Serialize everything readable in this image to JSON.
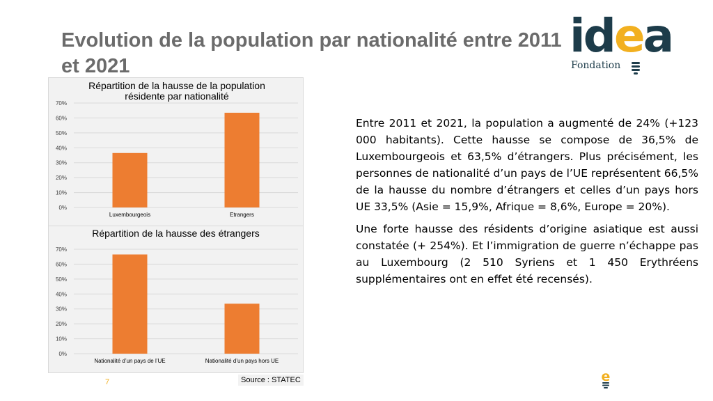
{
  "slide": {
    "title": "Evolution de la population par nationalité entre 2011 et 2021",
    "page_number": "7",
    "source": "Source : STATEC",
    "paragraphs": [
      "Entre 2011 et 2021, la population a augmenté de 24% (+123 000 habitants). Cette hausse se compose de 36,5% de Luxembourgeois et 63,5% d’étrangers. Plus précisément, les personnes de nationalité d’un pays de l’UE représentent 66,5% de la hausse du nombre d’étrangers et celles d’un pays hors UE 33,5% (Asie = 15,9%, Afrique = 8,6%, Europe = 20%).",
      "Une forte hausse des résidents d’origine asiatique est aussi constatée (+ 254%). Et l’immigration de guerre n’échappe pas au Luxembourg (2 510 Syriens et 1 450 Erythréens supplémentaires ont en effet été recensés)."
    ]
  },
  "logo": {
    "letters": [
      "id",
      "e",
      "a"
    ],
    "subtitle": "Fondation",
    "colors": {
      "dark": "#1d3c4a",
      "accent": "#f2b020"
    }
  },
  "small_logo": {
    "letter": "e"
  },
  "chart_data": [
    {
      "type": "bar",
      "title": "Répartition de la hausse de la population résidente par nationalité",
      "categories": [
        "Luxembourgeois",
        "Etrangers"
      ],
      "values": [
        36.5,
        63.5
      ],
      "ylim": [
        0,
        70
      ],
      "yticks": [
        "0%",
        "10%",
        "20%",
        "30%",
        "40%",
        "50%",
        "60%",
        "70%"
      ],
      "grid": true,
      "color": "#ed7d31"
    },
    {
      "type": "bar",
      "title": "Répartition de la hausse des étrangers",
      "categories": [
        "Nationalité d’un pays de l’UE",
        "Nationalité d’un pays hors UE"
      ],
      "values": [
        66.5,
        33.5
      ],
      "ylim": [
        0,
        70
      ],
      "yticks": [
        "0%",
        "10%",
        "20%",
        "30%",
        "40%",
        "50%",
        "60%",
        "70%"
      ],
      "grid": true,
      "color": "#ed7d31"
    }
  ]
}
